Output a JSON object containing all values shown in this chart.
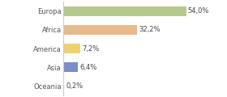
{
  "categories": [
    "Europa",
    "Africa",
    "America",
    "Asia",
    "Oceania"
  ],
  "values": [
    54.0,
    32.2,
    7.2,
    6.4,
    0.2
  ],
  "labels": [
    "54,0%",
    "32,2%",
    "7,2%",
    "6,4%",
    "0,2%"
  ],
  "bar_colors": [
    "#b5c98e",
    "#e8b98a",
    "#f0d070",
    "#7b8ec8",
    "#b0b0b0"
  ],
  "background_color": "#ffffff",
  "xlim": [
    0,
    70
  ],
  "label_fontsize": 6.0,
  "tick_fontsize": 6.0,
  "bar_height": 0.55
}
